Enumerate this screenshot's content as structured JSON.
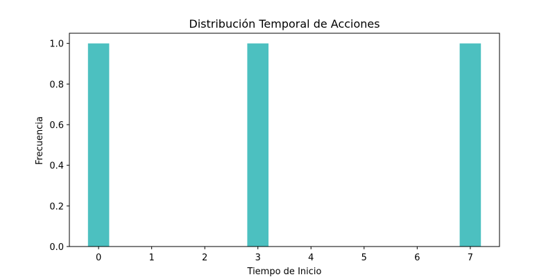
{
  "chart_data": {
    "type": "bar",
    "title": "Distribución Temporal de Acciones",
    "xlabel": "Tiempo de Inicio",
    "ylabel": "Frecuencia",
    "x": [
      0,
      3,
      7
    ],
    "values": [
      1,
      1,
      1
    ],
    "xticks": [
      "0",
      "1",
      "2",
      "3",
      "4",
      "5",
      "6",
      "7"
    ],
    "yticks": [
      "0.0",
      "0.2",
      "0.4",
      "0.6",
      "0.8",
      "1.0"
    ],
    "xlim": [
      -0.55,
      7.55
    ],
    "ylim": [
      0,
      1.05
    ],
    "bar_width": 0.4,
    "bar_color": "#4cc0c0",
    "grid": false,
    "legend": "none"
  }
}
